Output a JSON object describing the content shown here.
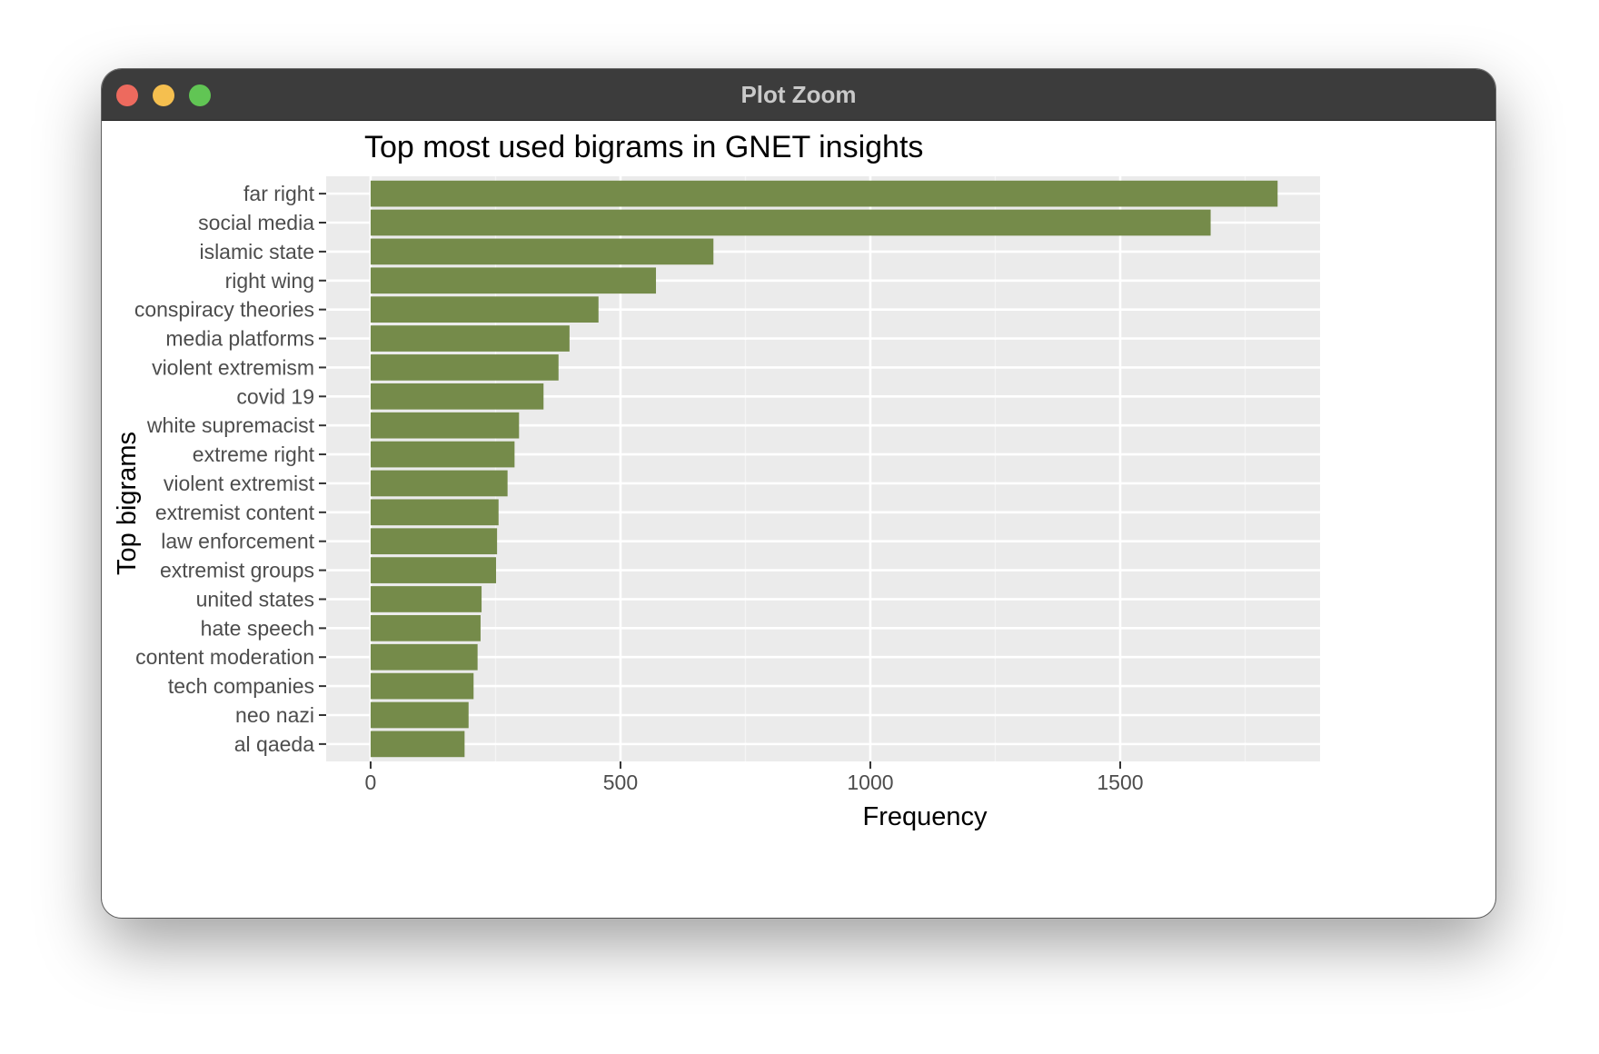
{
  "window": {
    "title": "Plot Zoom"
  },
  "colors": {
    "bar": "#758b4a",
    "panel": "#ebebeb",
    "grid_major": "#ffffff",
    "grid_minor": "#f5f5f5",
    "text_axis": "#4d4d4d",
    "text_title": "#000000"
  },
  "chart_data": {
    "type": "bar",
    "orientation": "horizontal",
    "title": "Top most used bigrams in GNET insights",
    "xlabel": "Frequency",
    "ylabel": "Top bigrams",
    "xlim": [
      -89,
      1900
    ],
    "xticks": [
      0,
      500,
      1000,
      1500
    ],
    "grid": true,
    "categories": [
      "far right",
      "social media",
      "islamic state",
      "right wing",
      "conspiracy theories",
      "media platforms",
      "violent extremism",
      "covid 19",
      "white supremacist",
      "extreme right",
      "violent extremist",
      "extremist content",
      "law enforcement",
      "extremist groups",
      "united states",
      "hate speech",
      "content moderation",
      "tech companies",
      "neo nazi",
      "al qaeda"
    ],
    "values": [
      1815,
      1681,
      686,
      571,
      456,
      398,
      376,
      346,
      297,
      288,
      274,
      256,
      253,
      251,
      222,
      220,
      214,
      206,
      196,
      188
    ]
  }
}
